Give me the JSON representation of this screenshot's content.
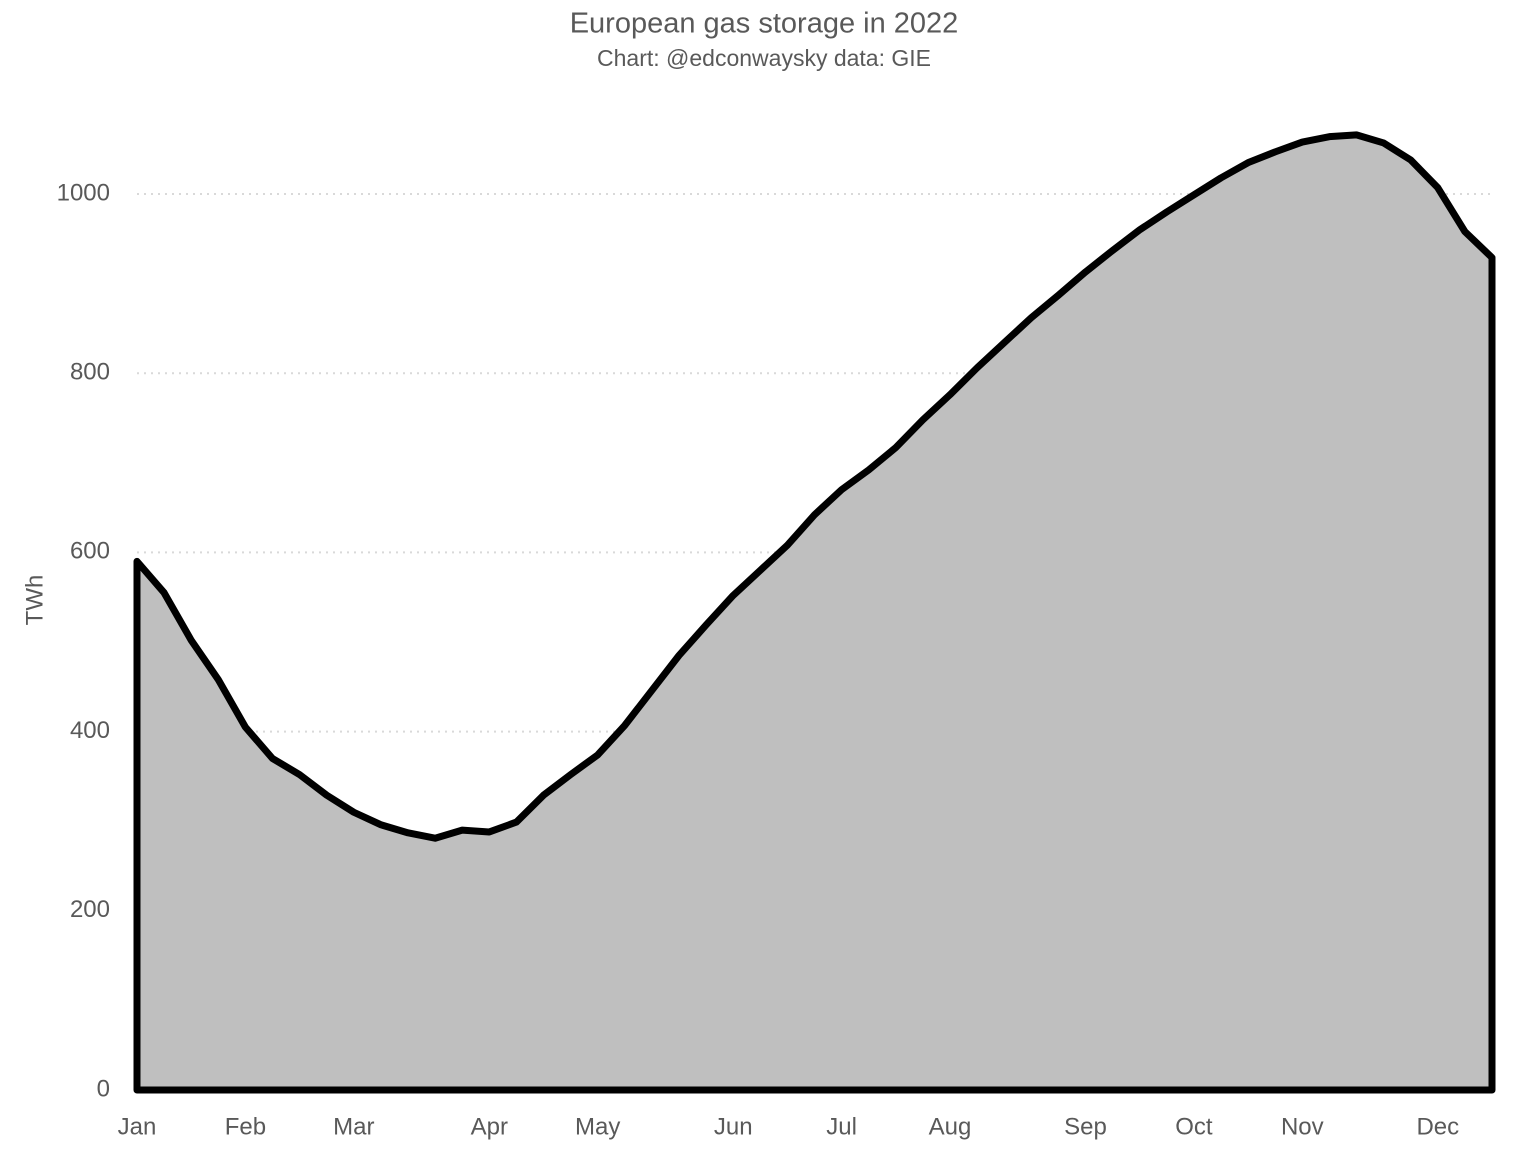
{
  "chart_data": {
    "type": "area",
    "title": "European gas storage in 2022",
    "subtitle": "Chart: @edconwaysky data: GIE",
    "y_label": "TWh",
    "categories": [
      "Jan",
      null,
      null,
      null,
      "Feb",
      null,
      null,
      null,
      "Mar",
      null,
      null,
      null,
      null,
      "Apr",
      null,
      null,
      null,
      "May",
      null,
      null,
      null,
      null,
      "Jun",
      null,
      null,
      null,
      "Jul",
      null,
      null,
      null,
      "Aug",
      null,
      null,
      null,
      null,
      "Sep",
      null,
      null,
      null,
      "Oct",
      null,
      null,
      null,
      "Nov",
      null,
      null,
      null,
      null,
      "Dec",
      null,
      null
    ],
    "values": [
      590,
      555,
      502,
      458,
      405,
      370,
      352,
      329,
      310,
      296,
      287,
      281,
      290,
      288,
      299,
      329,
      352,
      374,
      407,
      446,
      485,
      519,
      552,
      580,
      608,
      642,
      670,
      692,
      717,
      748,
      776,
      806,
      834,
      862,
      887,
      913,
      937,
      960,
      980,
      999,
      1018,
      1035,
      1047,
      1058,
      1064,
      1066,
      1057,
      1038,
      1007,
      958,
      929
    ],
    "color": "#bfbfbf",
    "line_color": "#000000",
    "ylim": [
      0,
      1100
    ],
    "yticks": [
      0,
      200,
      400,
      600,
      800,
      1000
    ],
    "grid": true
  }
}
